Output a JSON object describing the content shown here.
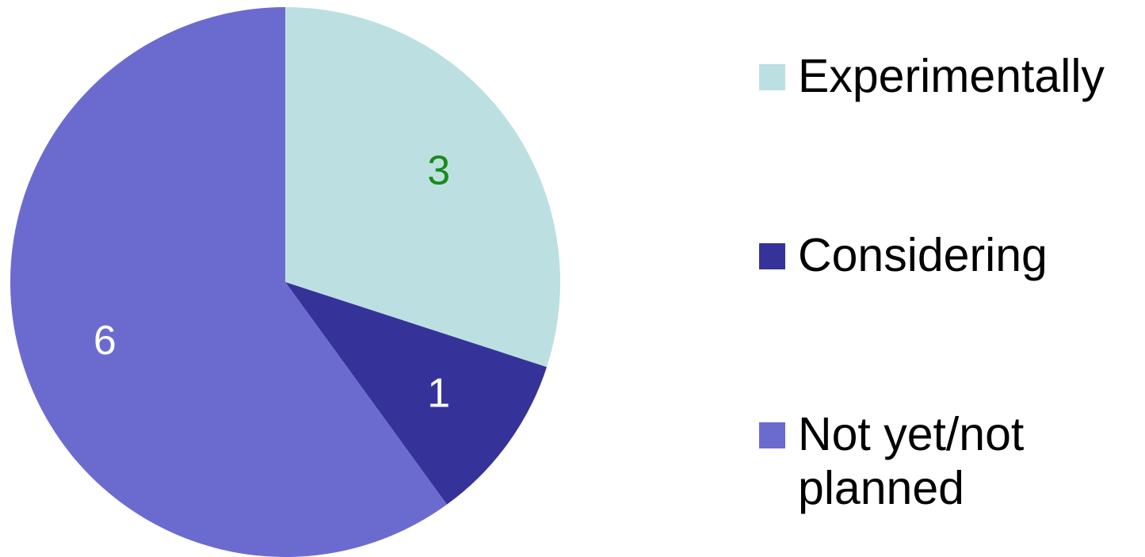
{
  "chart_data": {
    "type": "pie",
    "categories": [
      "Experimentally",
      "Considering",
      "Not yet/not planned"
    ],
    "values": [
      3,
      1,
      6
    ],
    "colors": [
      "#bce0e2",
      "#353399",
      "#6b6bcf"
    ],
    "label_colors": [
      "#198a19",
      "#ffffff",
      "#ffffff"
    ],
    "start_angle": "12 o'clock",
    "direction": "clockwise",
    "legend_position": "right"
  },
  "legend": {
    "items": [
      {
        "label": "Experimentally",
        "color": "#bce0e2"
      },
      {
        "label": "Considering",
        "color": "#353399"
      },
      {
        "label": "Not yet/not\nplanned",
        "color": "#6b6bcf"
      }
    ]
  }
}
